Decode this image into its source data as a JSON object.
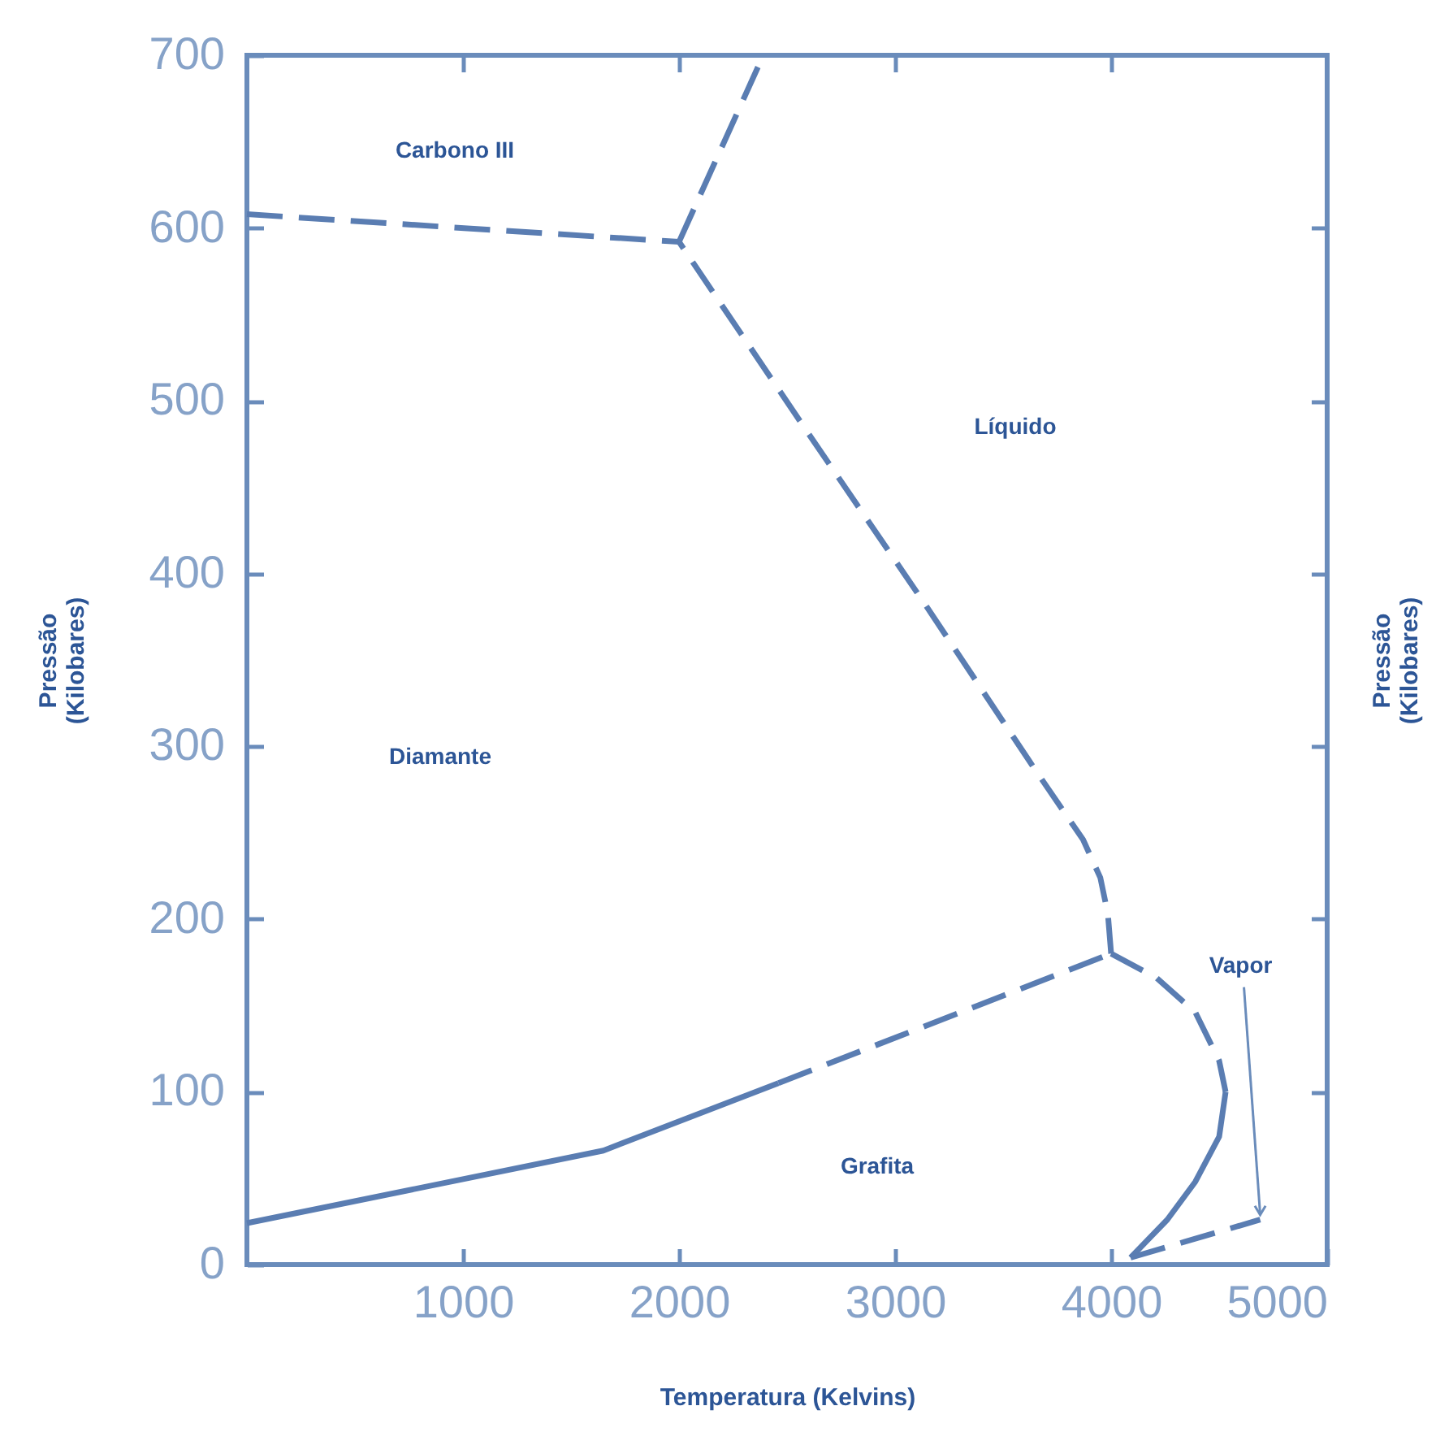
{
  "chart_data": {
    "type": "line",
    "xlabel": "Temperatura (Kelvins)",
    "ylabel": "Pressão (Kilobares)",
    "y2label": "Pressão (Kilobares)",
    "xlim": [
      0,
      5000
    ],
    "ylim": [
      0,
      700
    ],
    "xticks": [
      1000,
      2000,
      3000,
      4000,
      5000
    ],
    "yticks": [
      0,
      100,
      200,
      300,
      400,
      500,
      600,
      700
    ],
    "line_style": "dashed",
    "series": [
      {
        "color": "#5a7db2",
        "line_style": "solid",
        "x": [
          0,
          1650,
          2460
        ],
        "values": [
          24,
          66,
          105
        ]
      },
      {
        "color": "#5a7db2",
        "x": [
          2460,
          4000
        ],
        "values": [
          105,
          180
        ]
      },
      {
        "color": "#5a7db2",
        "x": [
          4000,
          3985,
          3950,
          3870,
          3640,
          3140,
          2610,
          2000
        ],
        "values": [
          180,
          203,
          224,
          246,
          288,
          382,
          479,
          592
        ]
      },
      {
        "color": "#5a7db2",
        "x": [
          0,
          2000
        ],
        "values": [
          608,
          592
        ]
      },
      {
        "color": "#5a7db2",
        "x": [
          2000,
          2390
        ],
        "values": [
          592,
          700
        ]
      },
      {
        "color": "#5a7db2",
        "x": [
          4000,
          4210,
          4390,
          4500,
          4530
        ],
        "values": [
          180,
          166,
          146,
          118,
          100
        ]
      },
      {
        "color": "#5a7db2",
        "line_style": "solid",
        "x": [
          4530,
          4500,
          4390,
          4260,
          4090
        ],
        "values": [
          100,
          74,
          48,
          26,
          4
        ]
      },
      {
        "color": "#5a7db2",
        "x": [
          4090,
          4690
        ],
        "values": [
          4,
          26
        ]
      }
    ],
    "annotations": [
      "Carbono III",
      "Líquido",
      "Diamante",
      "Grafita",
      {
        "text": "Vapor",
        "x": 4690,
        "y": 26
      }
    ]
  }
}
